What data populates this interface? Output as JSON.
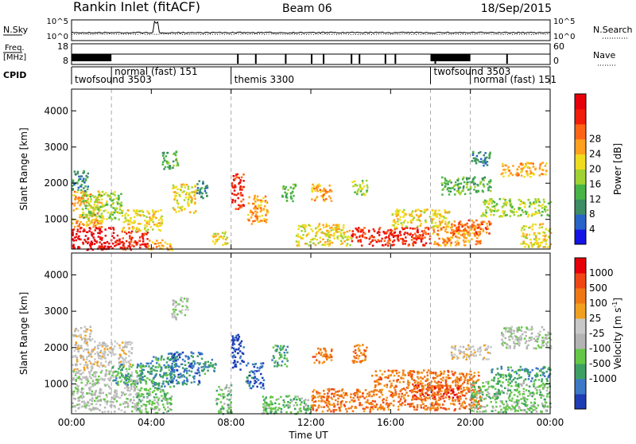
{
  "header": {
    "station": "Rankin Inlet (fitACF)",
    "beam": "Beam 06",
    "date": "18/Sep/2015"
  },
  "top_panels": {
    "nsky": {
      "label": "N.Sky",
      "ticks": [
        "10^5",
        "10^0"
      ]
    },
    "nsearch": {
      "label": "N.Search",
      "ticks": [
        "10^5",
        "10^0"
      ]
    },
    "freq": {
      "label_line1": "Freq.",
      "label_line2": "[MHz]",
      "ticks": [
        "18",
        "8"
      ]
    },
    "nave": {
      "label": "Nave",
      "ticks": [
        "60",
        "0"
      ]
    },
    "cpid": {
      "label": "CPID",
      "segments": [
        {
          "name": "twofsound 3503",
          "start": 0.0,
          "end": 2.0
        },
        {
          "name": "normal (fast) 151",
          "start": 2.0,
          "end": 8.0
        },
        {
          "name": "themis 3300",
          "start": 8.0,
          "end": 18.0
        },
        {
          "name": "twofsound 3503",
          "start": 18.0,
          "end": 20.0
        },
        {
          "name": "normal (fast) 151",
          "start": 20.0,
          "end": 24.0
        }
      ]
    }
  },
  "chart_data": [
    {
      "type": "heatmap",
      "title": "",
      "xlabel": "",
      "ylabel": "Slant Range [km]",
      "xlim": [
        0,
        24
      ],
      "ylim": [
        180,
        4600
      ],
      "x_ticks": [
        "00:00",
        "04:00",
        "08:00",
        "12:00",
        "16:00",
        "20:00",
        "00:00"
      ],
      "y_ticks": [
        "1000",
        "2000",
        "3000",
        "4000"
      ],
      "colorbar": {
        "label": "Power [dB]",
        "ticks": [
          "4",
          "8",
          "12",
          "16",
          "20",
          "24",
          "28"
        ],
        "colors": [
          "#1414e6",
          "#2864c8",
          "#3c8c64",
          "#46b446",
          "#a0d232",
          "#f0dc1e",
          "#ffa01e",
          "#ff6414",
          "#f01e0a",
          "#e6000a"
        ]
      },
      "regions": [
        {
          "t0": 0.0,
          "t1": 2.2,
          "r0": 180,
          "r1": 800,
          "level": 9
        },
        {
          "t0": 2.2,
          "t1": 3.8,
          "r0": 180,
          "r1": 700,
          "level": 8
        },
        {
          "t0": 3.8,
          "t1": 5.0,
          "r0": 180,
          "r1": 450,
          "level": 6
        },
        {
          "t0": 0.0,
          "t1": 1.5,
          "r0": 800,
          "r1": 1800,
          "level": 6
        },
        {
          "t0": 0.5,
          "t1": 2.5,
          "r0": 1000,
          "r1": 1800,
          "level": 4
        },
        {
          "t0": 2.5,
          "t1": 4.5,
          "r0": 700,
          "r1": 1300,
          "level": 5
        },
        {
          "t0": 0.0,
          "t1": 0.8,
          "r0": 1800,
          "r1": 2400,
          "level": 2
        },
        {
          "t0": 5.0,
          "t1": 6.2,
          "r0": 1200,
          "r1": 2000,
          "level": 5
        },
        {
          "t0": 6.2,
          "t1": 6.8,
          "r0": 1600,
          "r1": 2100,
          "level": 2
        },
        {
          "t0": 4.5,
          "t1": 5.3,
          "r0": 2400,
          "r1": 2900,
          "level": 3
        },
        {
          "t0": 8.0,
          "t1": 8.6,
          "r0": 1300,
          "r1": 2300,
          "level": 8
        },
        {
          "t0": 8.8,
          "t1": 9.8,
          "r0": 900,
          "r1": 1700,
          "level": 6
        },
        {
          "t0": 7.0,
          "t1": 7.8,
          "r0": 300,
          "r1": 700,
          "level": 5
        },
        {
          "t0": 10.5,
          "t1": 11.2,
          "r0": 1500,
          "r1": 2000,
          "level": 3
        },
        {
          "t0": 12.0,
          "t1": 13.0,
          "r0": 1500,
          "r1": 2000,
          "level": 6
        },
        {
          "t0": 14.0,
          "t1": 14.8,
          "r0": 1700,
          "r1": 2100,
          "level": 4
        },
        {
          "t0": 11.2,
          "t1": 14.0,
          "r0": 300,
          "r1": 900,
          "level": 5
        },
        {
          "t0": 14.0,
          "t1": 18.0,
          "r0": 300,
          "r1": 800,
          "level": 8
        },
        {
          "t0": 18.0,
          "t1": 20.5,
          "r0": 300,
          "r1": 900,
          "level": 6
        },
        {
          "t0": 16.0,
          "t1": 19.0,
          "r0": 800,
          "r1": 1300,
          "level": 5
        },
        {
          "t0": 19.0,
          "t1": 21.0,
          "r0": 600,
          "r1": 1000,
          "level": 7
        },
        {
          "t0": 18.5,
          "t1": 21.0,
          "r0": 1700,
          "r1": 2200,
          "level": 3
        },
        {
          "t0": 20.5,
          "t1": 24.0,
          "r0": 1100,
          "r1": 1600,
          "level": 4
        },
        {
          "t0": 21.5,
          "t1": 23.8,
          "r0": 2200,
          "r1": 2600,
          "level": 6
        },
        {
          "t0": 20.0,
          "t1": 21.0,
          "r0": 2500,
          "r1": 2900,
          "level": 2
        },
        {
          "t0": 22.5,
          "t1": 24.0,
          "r0": 250,
          "r1": 900,
          "level": 5
        }
      ]
    },
    {
      "type": "heatmap",
      "title": "",
      "xlabel": "Time UT",
      "ylabel": "Slant Range [km]",
      "xlim": [
        0,
        24
      ],
      "ylim": [
        180,
        4600
      ],
      "x_ticks": [
        "00:00",
        "04:00",
        "08:00",
        "12:00",
        "16:00",
        "20:00",
        "00:00"
      ],
      "y_ticks": [
        "1000",
        "2000",
        "3000",
        "4000"
      ],
      "colorbar": {
        "label": "Velocity [m s^-1]",
        "ticks": [
          "1000",
          "500",
          "100",
          "25",
          "-25",
          "-100",
          "-500",
          "-1000"
        ],
        "colors": [
          "#1e3cb4",
          "#3c78c8",
          "#3ca064",
          "#64c846",
          "#b4b4b4",
          "#c8c8c8",
          "#f0a01e",
          "#f07814",
          "#f04614",
          "#e6000a"
        ]
      },
      "regions": [
        {
          "t0": 0.0,
          "t1": 3.5,
          "r0": 250,
          "r1": 1400,
          "level": 4
        },
        {
          "t0": 0.0,
          "t1": 1.0,
          "r0": 1400,
          "r1": 2600,
          "level": 5
        },
        {
          "t0": 1.0,
          "t1": 3.0,
          "r0": 1500,
          "r1": 2200,
          "level": 5
        },
        {
          "t0": 2.0,
          "t1": 4.2,
          "r0": 1000,
          "r1": 1600,
          "level": 2
        },
        {
          "t0": 3.2,
          "t1": 5.0,
          "r0": 200,
          "r1": 900,
          "level": 3
        },
        {
          "t0": 4.0,
          "t1": 5.2,
          "r0": 900,
          "r1": 1800,
          "level": 2
        },
        {
          "t0": 4.8,
          "t1": 6.5,
          "r0": 1000,
          "r1": 1900,
          "level": 1
        },
        {
          "t0": 6.5,
          "t1": 7.2,
          "r0": 1300,
          "r1": 1700,
          "level": 2
        },
        {
          "t0": 5.0,
          "t1": 5.8,
          "r0": 2800,
          "r1": 3400,
          "level": 4
        },
        {
          "t0": 8.0,
          "t1": 8.6,
          "r0": 1400,
          "r1": 2400,
          "level": 0
        },
        {
          "t0": 8.7,
          "t1": 9.6,
          "r0": 900,
          "r1": 1600,
          "level": 1
        },
        {
          "t0": 7.2,
          "t1": 8.0,
          "r0": 200,
          "r1": 1000,
          "level": 3
        },
        {
          "t0": 10.0,
          "t1": 10.8,
          "r0": 1500,
          "r1": 2100,
          "level": 2
        },
        {
          "t0": 12.0,
          "t1": 13.0,
          "r0": 1600,
          "r1": 2000,
          "level": 7
        },
        {
          "t0": 14.0,
          "t1": 14.8,
          "r0": 1600,
          "r1": 2100,
          "level": 7
        },
        {
          "t0": 9.5,
          "t1": 12.0,
          "r0": 200,
          "r1": 700,
          "level": 3
        },
        {
          "t0": 12.0,
          "t1": 15.0,
          "r0": 250,
          "r1": 900,
          "level": 7
        },
        {
          "t0": 15.0,
          "t1": 20.5,
          "r0": 300,
          "r1": 1400,
          "level": 7
        },
        {
          "t0": 17.0,
          "t1": 19.5,
          "r0": 600,
          "r1": 1000,
          "level": 8
        },
        {
          "t0": 20.0,
          "t1": 24.0,
          "r0": 250,
          "r1": 1100,
          "level": 3
        },
        {
          "t0": 21.0,
          "t1": 24.0,
          "r0": 1100,
          "r1": 1500,
          "level": 2
        },
        {
          "t0": 21.5,
          "t1": 24.0,
          "r0": 2000,
          "r1": 2600,
          "level": 4
        },
        {
          "t0": 19.0,
          "t1": 21.0,
          "r0": 1700,
          "r1": 2100,
          "level": 5
        }
      ]
    }
  ]
}
